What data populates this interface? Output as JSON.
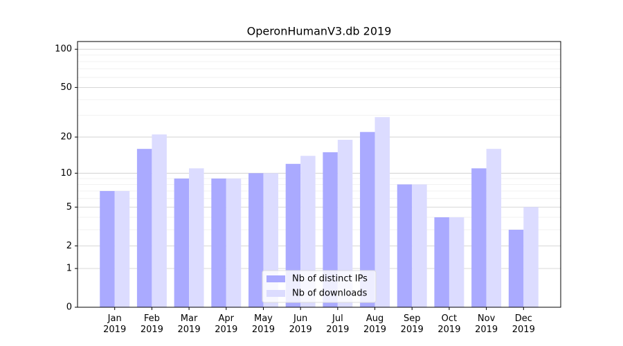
{
  "chart_data": {
    "type": "bar",
    "title": "OperonHumanV3.db 2019",
    "categories": [
      "Jan\n2019",
      "Feb\n2019",
      "Mar\n2019",
      "Apr\n2019",
      "May\n2019",
      "Jun\n2019",
      "Jul\n2019",
      "Aug\n2019",
      "Sep\n2019",
      "Oct\n2019",
      "Nov\n2019",
      "Dec\n2019"
    ],
    "series": [
      {
        "name": "Nb of distinct IPs",
        "color": "#aaaaff",
        "values": [
          7,
          16,
          9,
          9,
          10,
          12,
          15,
          22,
          8,
          4,
          11,
          3
        ]
      },
      {
        "name": "Nb of downloads",
        "color": "#dcdcff",
        "values": [
          7,
          21,
          11,
          9,
          10,
          14,
          19,
          29,
          8,
          4,
          16,
          5
        ]
      }
    ],
    "yscale": "log1p",
    "ylim": [
      0,
      115
    ],
    "yticks": [
      0,
      1,
      2,
      5,
      10,
      20,
      50,
      100
    ],
    "grid": true,
    "legend": "lower center"
  }
}
